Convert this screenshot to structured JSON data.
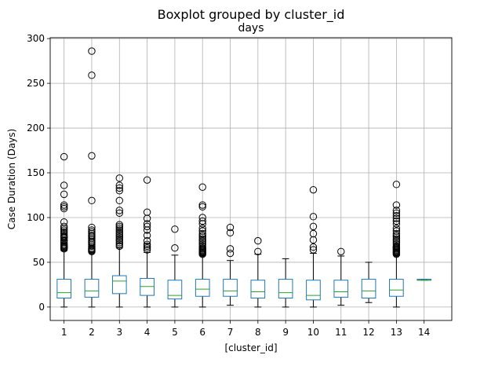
{
  "chart_data": {
    "type": "boxplot",
    "suptitle": "Boxplot grouped by cluster_id",
    "title": "days",
    "xlabel": "[cluster_id]",
    "ylabel": "Case Duration (Days)",
    "ylim": [
      -15,
      301
    ],
    "yticks": [
      0,
      50,
      100,
      150,
      200,
      250,
      300
    ],
    "grid": true,
    "colors": {
      "box": "#1f77b4",
      "median": "#2ca02c",
      "whisker": "#000000",
      "flier": "#000000",
      "grid": "#b0b0b0"
    },
    "boxes": [
      {
        "label": "1",
        "q1": 10,
        "median": 16,
        "q3": 31,
        "whislo": 0,
        "whishi": 63,
        "fliers": [
          65,
          66,
          67,
          68,
          69,
          70,
          72,
          74,
          75,
          77,
          78,
          79,
          80,
          82,
          84,
          86,
          88,
          90,
          95,
          110,
          112,
          114,
          126,
          136,
          168
        ]
      },
      {
        "label": "2",
        "q1": 11,
        "median": 18,
        "q3": 31,
        "whislo": 0,
        "whishi": 61,
        "fliers": [
          62,
          63,
          64,
          65,
          66,
          68,
          70,
          72,
          73,
          75,
          77,
          79,
          80,
          82,
          84,
          86,
          89,
          119,
          169,
          259,
          286
        ]
      },
      {
        "label": "3",
        "q1": 15,
        "median": 29,
        "q3": 35,
        "whislo": 0,
        "whishi": 66,
        "fliers": [
          68,
          70,
          72,
          74,
          76,
          78,
          80,
          82,
          84,
          86,
          88,
          90,
          92,
          105,
          108,
          119,
          130,
          133,
          136,
          144
        ]
      },
      {
        "label": "4",
        "q1": 13,
        "median": 23,
        "q3": 32,
        "whislo": 0,
        "whishi": 61,
        "fliers": [
          64,
          66,
          68,
          70,
          74,
          80,
          86,
          90,
          93,
          99,
          106,
          142
        ]
      },
      {
        "label": "5",
        "q1": 9,
        "median": 13,
        "q3": 30,
        "whislo": 0,
        "whishi": 58,
        "fliers": [
          66,
          87
        ]
      },
      {
        "label": "6",
        "q1": 12,
        "median": 20,
        "q3": 31,
        "whislo": 0,
        "whishi": 58,
        "fliers": [
          59,
          60,
          61,
          62,
          63,
          64,
          65,
          66,
          68,
          70,
          72,
          74,
          76,
          78,
          80,
          82,
          85,
          88,
          93,
          96,
          100,
          112,
          114,
          134
        ]
      },
      {
        "label": "7",
        "q1": 12,
        "median": 18,
        "q3": 31,
        "whislo": 2,
        "whishi": 52,
        "fliers": [
          60,
          65,
          83,
          89
        ]
      },
      {
        "label": "8",
        "q1": 10,
        "median": 17,
        "q3": 30,
        "whislo": 0,
        "whishi": 59,
        "fliers": [
          62,
          74
        ]
      },
      {
        "label": "9",
        "q1": 10,
        "median": 16,
        "q3": 31,
        "whislo": 0,
        "whishi": 54,
        "fliers": []
      },
      {
        "label": "10",
        "q1": 8,
        "median": 13,
        "q3": 30,
        "whislo": 0,
        "whishi": 60,
        "fliers": [
          64,
          67,
          75,
          82,
          90,
          101,
          131
        ]
      },
      {
        "label": "11",
        "q1": 11,
        "median": 17,
        "q3": 30,
        "whislo": 2,
        "whishi": 57,
        "fliers": [
          62
        ]
      },
      {
        "label": "12",
        "q1": 10,
        "median": 18,
        "q3": 31,
        "whislo": 5,
        "whishi": 50,
        "fliers": []
      },
      {
        "label": "13",
        "q1": 12,
        "median": 19,
        "q3": 31,
        "whislo": 0,
        "whishi": 58,
        "fliers": [
          59,
          60,
          61,
          62,
          63,
          64,
          65,
          66,
          67,
          68,
          70,
          72,
          74,
          76,
          78,
          80,
          82,
          85,
          88,
          93,
          96,
          99,
          102,
          105,
          108,
          114,
          137
        ]
      },
      {
        "label": "14",
        "q1": 30,
        "median": 30,
        "q3": 31,
        "whislo": 30,
        "whishi": 31,
        "fliers": []
      }
    ]
  }
}
